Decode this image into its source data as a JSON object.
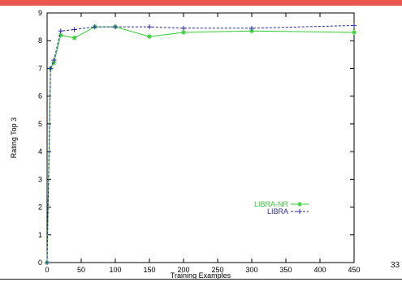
{
  "page": {
    "number": "33"
  },
  "colors": {
    "accent_bar": "#e8564f",
    "libra_nr": "#33cc33",
    "libra": "#2a2aa8"
  },
  "chart_data": {
    "type": "line",
    "title": "",
    "xlabel": "Training Examples",
    "ylabel": "Rating Top 3",
    "xlim": [
      0,
      450
    ],
    "ylim": [
      0,
      9
    ],
    "x_ticks": [
      0,
      50,
      100,
      150,
      200,
      250,
      300,
      350,
      400,
      450
    ],
    "y_ticks": [
      0,
      1,
      2,
      3,
      4,
      5,
      6,
      7,
      8,
      9
    ],
    "grid": false,
    "legend_position": "lower-right",
    "series": [
      {
        "name": "LIBRA-NR",
        "color": "#33cc33",
        "style": "solid",
        "marker": "x-cross",
        "x": [
          0,
          5,
          10,
          20,
          40,
          70,
          100,
          150,
          200,
          300,
          450
        ],
        "y": [
          0.0,
          7.0,
          7.2,
          8.2,
          8.1,
          8.5,
          8.5,
          8.15,
          8.3,
          8.35,
          8.3
        ]
      },
      {
        "name": "LIBRA",
        "color": "#2a2aa8",
        "style": "dashed",
        "marker": "plus",
        "x": [
          0,
          5,
          10,
          20,
          40,
          70,
          100,
          150,
          200,
          300,
          450
        ],
        "y": [
          0.0,
          7.0,
          7.3,
          8.35,
          8.4,
          8.5,
          8.5,
          8.5,
          8.45,
          8.45,
          8.55
        ]
      }
    ]
  }
}
